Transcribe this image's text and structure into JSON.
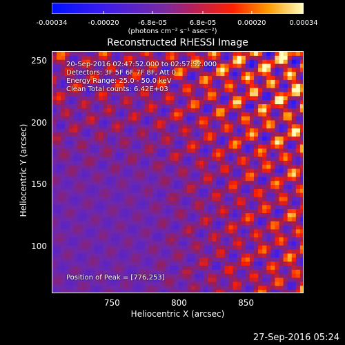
{
  "chart_data": {
    "type": "heatmap",
    "title": "Reconstructed RHESSI Image",
    "xlabel": "Heliocentric X (arcsec)",
    "ylabel": "Heliocentric Y (arcsec)",
    "xlim": [
      705,
      893
    ],
    "ylim": [
      62,
      258
    ],
    "x_ticks": [
      750,
      800,
      850
    ],
    "y_ticks": [
      100,
      150,
      200,
      250
    ],
    "colorbar": {
      "ticks": [
        "-0.00034",
        "-0.00020",
        "-6.8e-05",
        "6.8e-05",
        "0.00020",
        "0.00034"
      ],
      "tick_values": [
        -0.00034,
        -0.0002,
        -6.8e-05,
        6.8e-05,
        0.0002,
        0.00034
      ],
      "range": [
        -0.00034,
        0.00034
      ],
      "units": "(photons cm⁻² s⁻¹ asec⁻²)"
    },
    "annotations": [
      "20-Sep-2016 02:47:52.000 to 02:57:52.000",
      "Detectors: 3F 5F 6F 7F 8F, Att 0",
      "Energy Range: 25.0 - 50.0 keV",
      "Clean     Total counts: 6.42E+03"
    ],
    "peak_label": "Position of Peak = [776,253]",
    "peak": [
      776,
      253
    ],
    "colors": {
      "low": "#0000ff",
      "mid": "#6a2cb0",
      "high": "#ffff00"
    }
  },
  "timestamp": "27-Sep-2016 05:24"
}
